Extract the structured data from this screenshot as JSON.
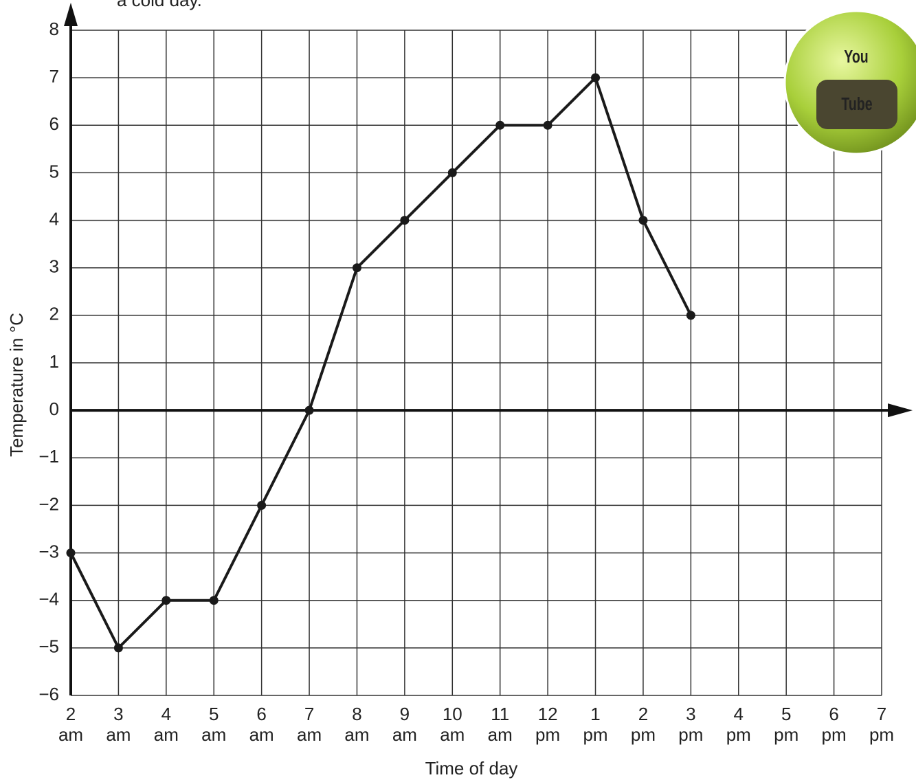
{
  "chart_data": {
    "type": "line",
    "title": "a cold day.",
    "x_label": "Time of day",
    "y_label": "Temperature in °C",
    "categories": [
      "2\nam",
      "3\nam",
      "4\nam",
      "5\nam",
      "6\nam",
      "7\nam",
      "8\nam",
      "9\nam",
      "10\nam",
      "11\nam",
      "12\npm",
      "1\npm",
      "2\npm",
      "3\npm",
      "4\npm",
      "5\npm",
      "6\npm",
      "7\npm"
    ],
    "values": [
      -3,
      -5,
      -4,
      -4,
      -2,
      0,
      3,
      4,
      5,
      6,
      6,
      7,
      4,
      2,
      null,
      null,
      null,
      null
    ],
    "color": "#1a1a1a",
    "ylim": [
      -6,
      8
    ],
    "yticks": [
      {
        "value": -6,
        "label": "−6"
      },
      {
        "value": -5,
        "label": "−5"
      },
      {
        "value": -4,
        "label": "−4"
      },
      {
        "value": -3,
        "label": "−3"
      },
      {
        "value": -2,
        "label": "−2"
      },
      {
        "value": -1,
        "label": "−1"
      },
      0,
      1,
      2,
      3,
      4,
      5,
      6,
      7,
      8
    ],
    "grid": true
  },
  "logo": {
    "line1": "You",
    "line2": "Tube"
  }
}
